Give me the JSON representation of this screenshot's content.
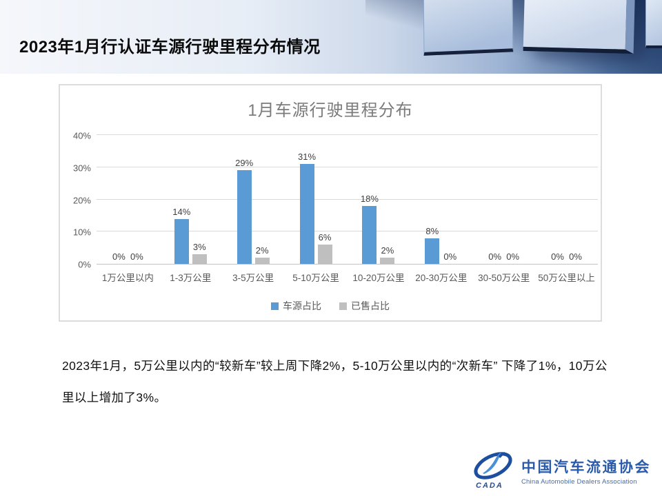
{
  "header": {
    "title": "2023年1月行认证车源行驶里程分布情况"
  },
  "chart_data": {
    "type": "bar",
    "title": "1月车源行驶里程分布",
    "categories": [
      "1万公里以内",
      "1-3万公里",
      "3-5万公里",
      "5-10万公里",
      "10-20万公里",
      "20-30万公里",
      "30-50万公里",
      "50万公里以上"
    ],
    "series": [
      {
        "name": "车源占比",
        "color": "#5B9BD5",
        "values": [
          0,
          14,
          29,
          31,
          18,
          8,
          0,
          0
        ]
      },
      {
        "name": "已售占比",
        "color": "#BFBFBF",
        "values": [
          0,
          3,
          2,
          6,
          2,
          0,
          0,
          0
        ]
      }
    ],
    "ylabel": "",
    "xlabel": "",
    "ylim": [
      0,
      40
    ],
    "yticks": [
      "0%",
      "10%",
      "20%",
      "30%",
      "40%"
    ],
    "grid": true,
    "legend_position": "bottom",
    "data_labels": true,
    "data_label_format": "percent"
  },
  "summary": {
    "text": "2023年1月，5万公里以内的“较新车”较上周下降2%，5-10万公里以内的“次新车” 下降了1%，10万公里以上增加了3%。"
  },
  "logo": {
    "mark": "CADA",
    "org_cn": "中国汽车流通协会",
    "org_en": "China Automobile Dealers Association"
  },
  "colors": {
    "bar_blue": "#5B9BD5",
    "bar_gray": "#BFBFBF",
    "gridline": "#D9D9D9",
    "axis_text": "#595959",
    "title_text": "#7B7B7B",
    "logo_blue": "#2A5BAB"
  }
}
